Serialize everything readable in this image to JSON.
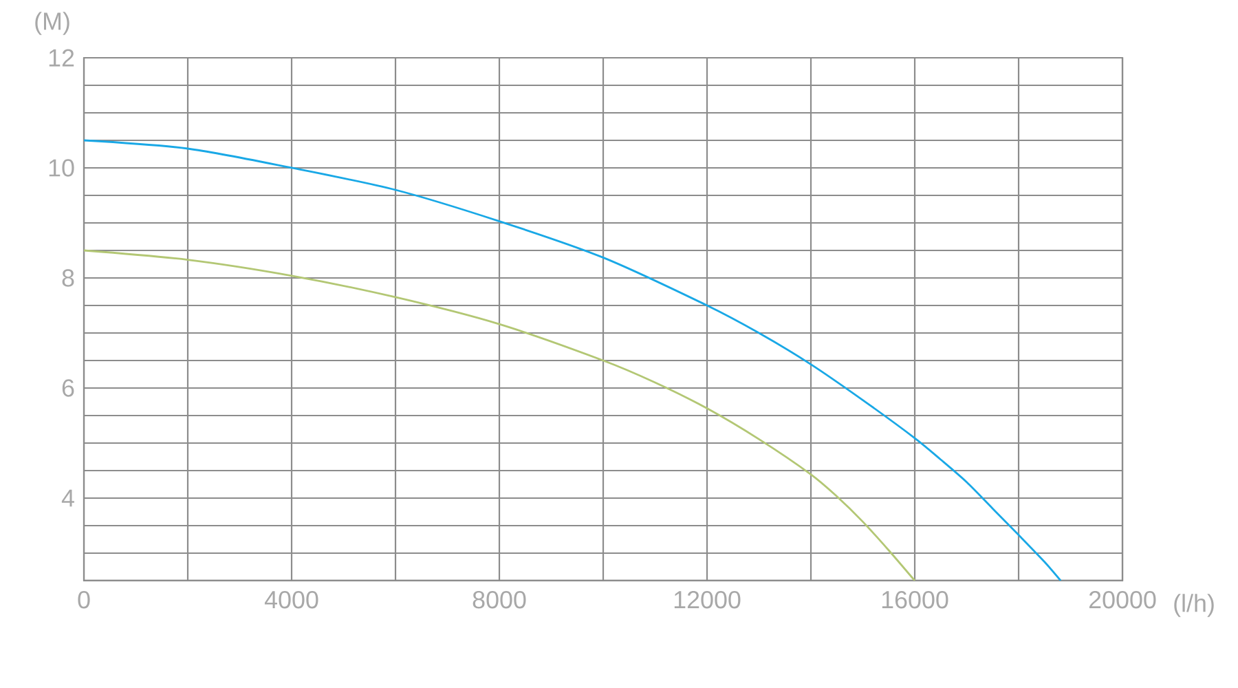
{
  "chart_data": {
    "type": "line",
    "xlabel": "(l/h)",
    "ylabel": "(M)",
    "xlim": [
      0,
      20000
    ],
    "ylim": [
      2.5,
      12
    ],
    "xticks": [
      0,
      {
        "value": 2000,
        "label": null
      },
      4000,
      {
        "value": 6000,
        "label": null
      },
      8000,
      {
        "value": 10000,
        "label": null
      },
      12000,
      {
        "value": 14000,
        "label": null
      },
      16000,
      {
        "value": 18000,
        "label": null
      },
      20000
    ],
    "yticks": [
      {
        "value": 2.5,
        "label": null
      },
      {
        "value": 3,
        "label": null
      },
      {
        "value": 3.5,
        "label": null
      },
      4,
      {
        "value": 4.5,
        "label": null
      },
      {
        "value": 5,
        "label": null
      },
      {
        "value": 5.5,
        "label": null
      },
      6,
      {
        "value": 6.5,
        "label": null
      },
      {
        "value": 7,
        "label": null
      },
      {
        "value": 7.5,
        "label": null
      },
      8,
      {
        "value": 8.5,
        "label": null
      },
      {
        "value": 9,
        "label": null
      },
      {
        "value": 9.5,
        "label": null
      },
      10,
      {
        "value": 10.5,
        "label": null
      },
      {
        "value": 11,
        "label": null
      },
      {
        "value": 11.5,
        "label": null
      },
      12
    ],
    "grid": true,
    "series": [
      {
        "color": "#b3c774",
        "x": [
          0,
          2000,
          4000,
          6000,
          8000,
          10000,
          11000,
          12000,
          13000,
          14000,
          14500,
          15000,
          15500,
          16000
        ],
        "values": [
          8.5,
          8.33,
          8.04,
          7.65,
          7.16,
          6.5,
          6.1,
          5.63,
          5.07,
          4.43,
          4.03,
          3.57,
          3.05,
          2.5
        ]
      },
      {
        "color": "#19a8e6",
        "x": [
          0,
          2000,
          4000,
          6000,
          8000,
          10000,
          12000,
          13000,
          14000,
          15000,
          16000,
          16500,
          17000,
          17500,
          18000,
          18500,
          18810
        ],
        "values": [
          10.5,
          10.35,
          10.0,
          9.6,
          9.03,
          8.37,
          7.5,
          7.0,
          6.43,
          5.78,
          5.09,
          4.7,
          4.29,
          3.81,
          3.33,
          2.84,
          2.5
        ]
      }
    ]
  }
}
